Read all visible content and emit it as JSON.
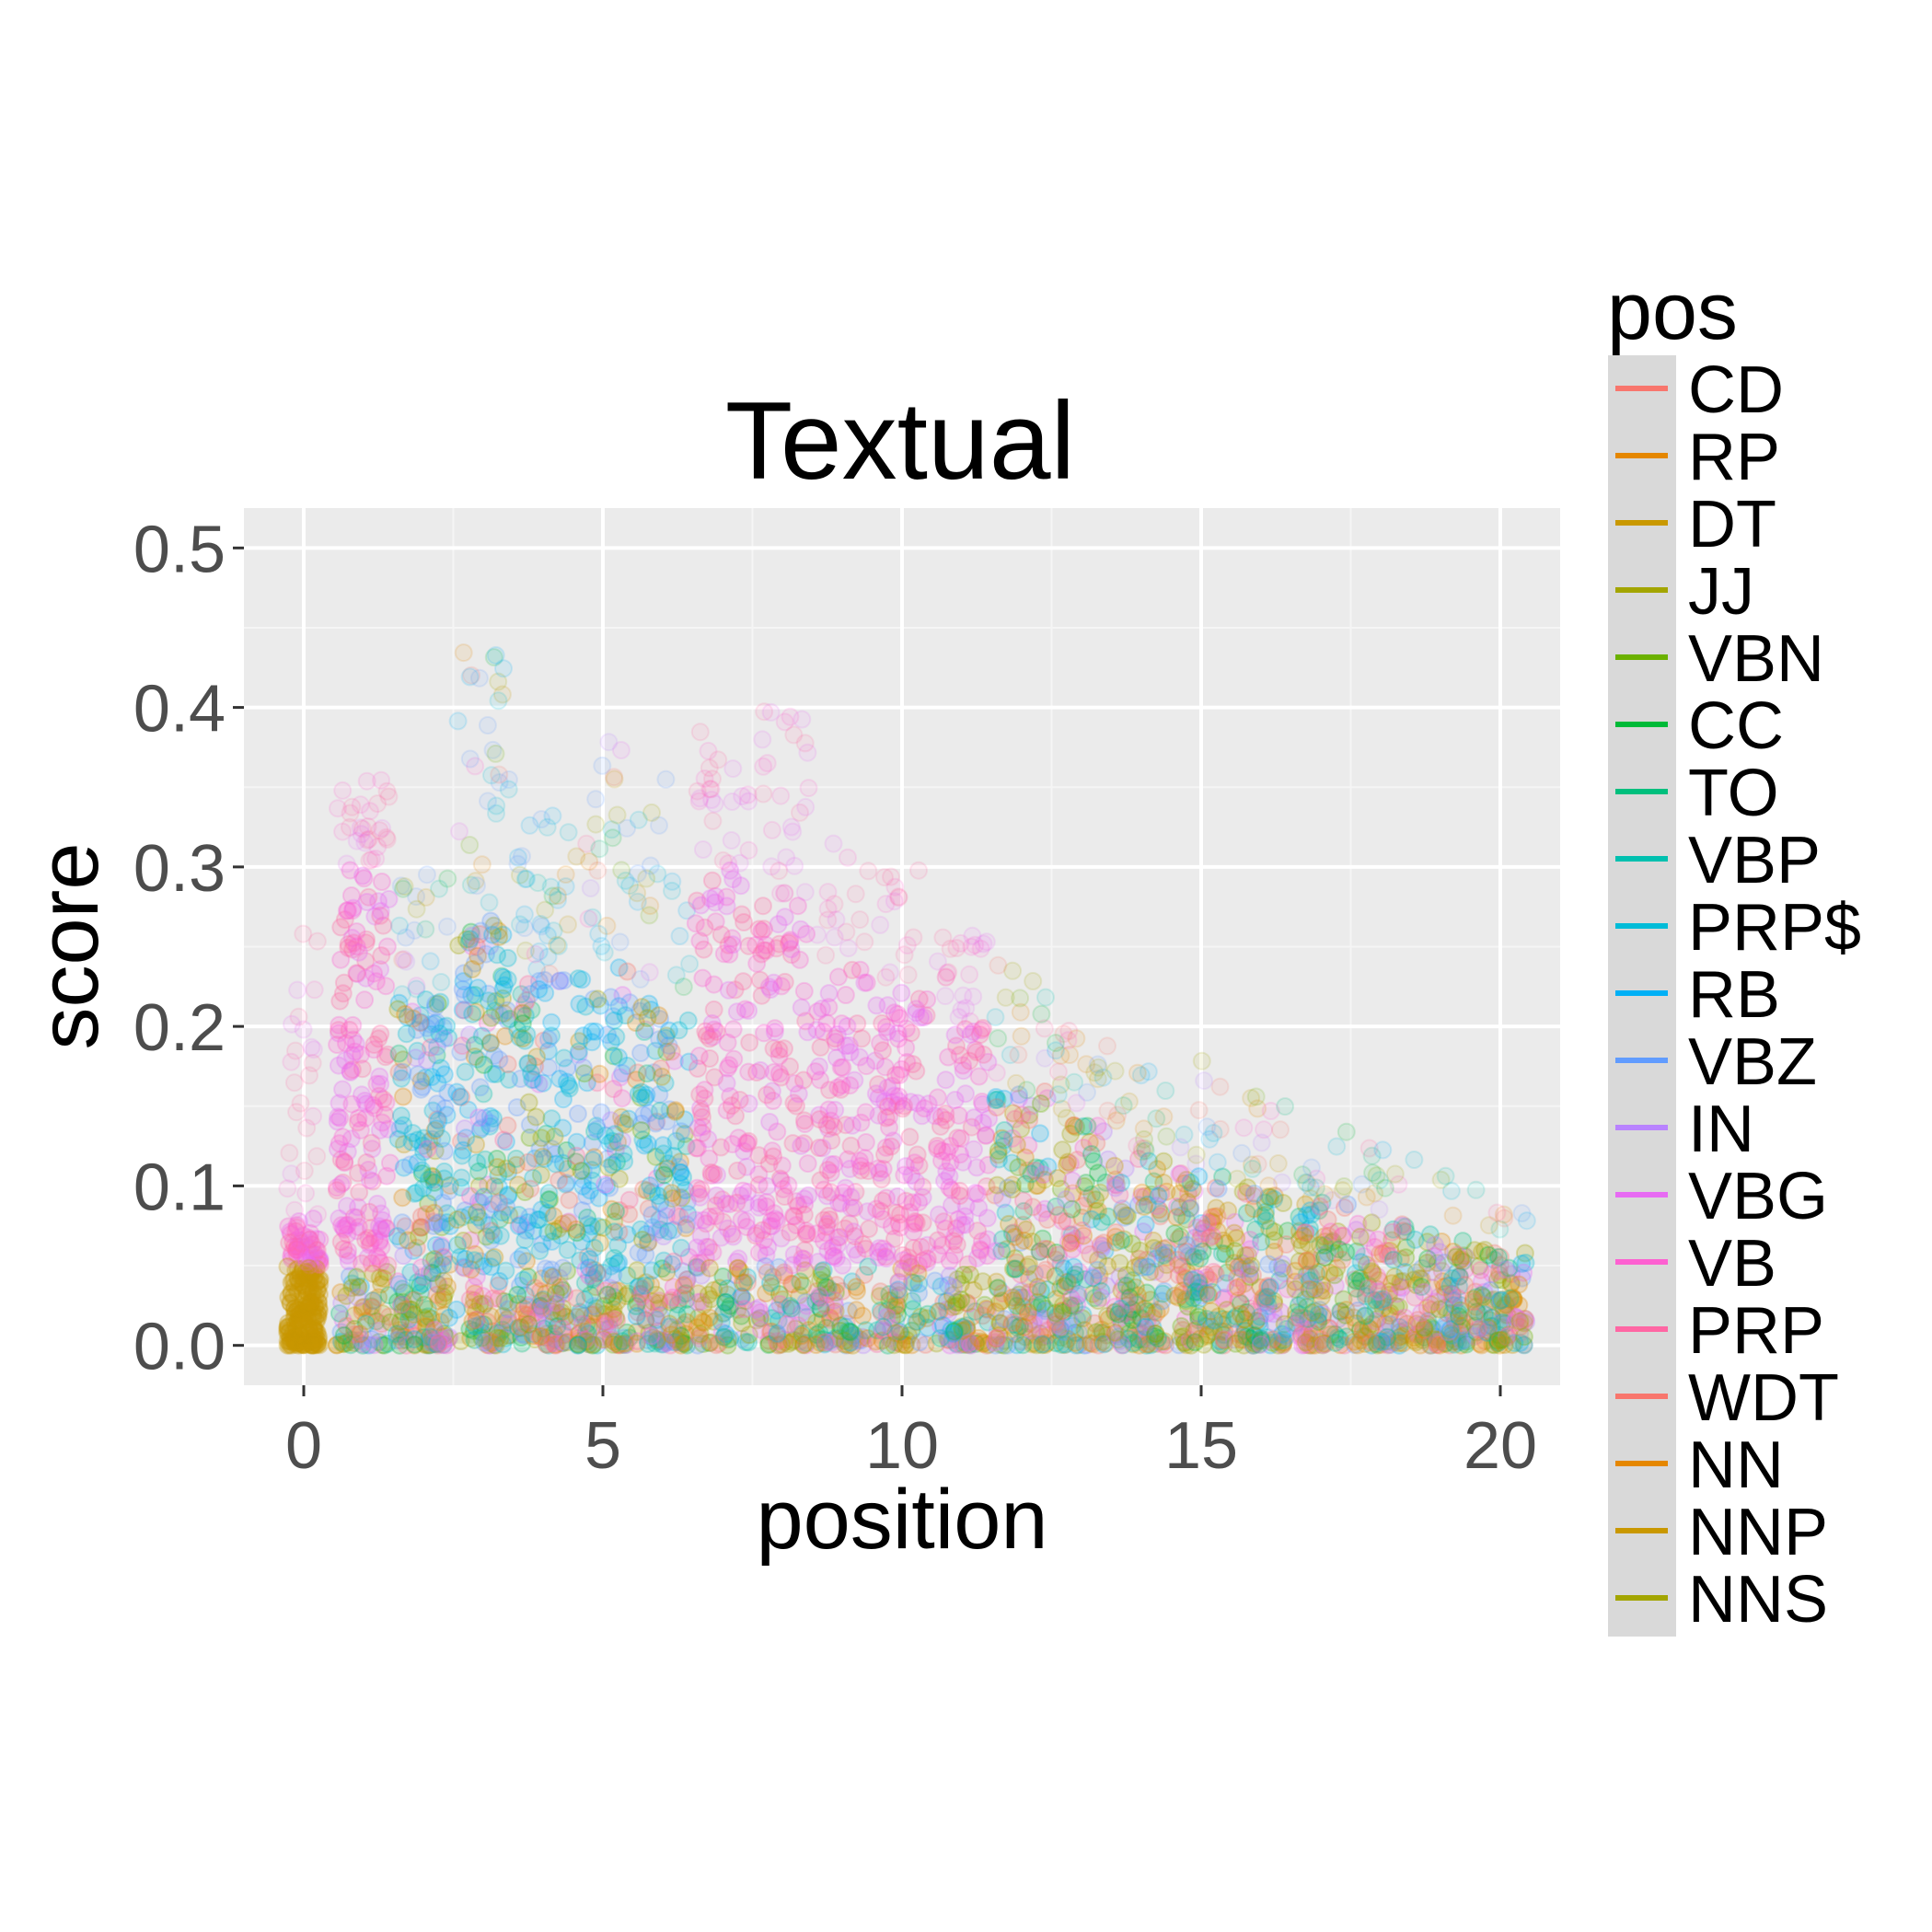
{
  "chart_data": {
    "type": "scatter",
    "title": "Textual",
    "xlabel": "position",
    "ylabel": "score",
    "xlim": [
      -1,
      21
    ],
    "ylim": [
      -0.025,
      0.525
    ],
    "x_ticks": [
      0,
      5,
      10,
      15,
      20
    ],
    "y_ticks": [
      0.0,
      0.1,
      0.2,
      0.3,
      0.4,
      0.5
    ],
    "x_tick_labels": [
      "0",
      "5",
      "10",
      "15",
      "20"
    ],
    "y_tick_labels": [
      "0.0",
      "0.1",
      "0.2",
      "0.3",
      "0.4",
      "0.5"
    ],
    "grid": true,
    "background": "#ebebeb",
    "legend": {
      "title": "pos",
      "placement": "right",
      "entries": [
        {
          "name": "CD",
          "color": "#F8766D"
        },
        {
          "name": "RP",
          "color": "#E58700"
        },
        {
          "name": "DT",
          "color": "#C99800"
        },
        {
          "name": "JJ",
          "color": "#A3A500"
        },
        {
          "name": "VBN",
          "color": "#6BB100"
        },
        {
          "name": "CC",
          "color": "#00BA38"
        },
        {
          "name": "TO",
          "color": "#00BF7D"
        },
        {
          "name": "VBP",
          "color": "#00C0AF"
        },
        {
          "name": "PRP$",
          "color": "#00BCD8"
        },
        {
          "name": "RB",
          "color": "#00B0F6"
        },
        {
          "name": "VBZ",
          "color": "#619CFF"
        },
        {
          "name": "IN",
          "color": "#B983FF"
        },
        {
          "name": "VBG",
          "color": "#E76BF3"
        },
        {
          "name": "VB",
          "color": "#FD61D1"
        },
        {
          "name": "PRP",
          "color": "#FF67A4"
        },
        {
          "name": "WDT",
          "color": "#F8766D"
        },
        {
          "name": "NN",
          "color": "#E58700"
        },
        {
          "name": "NNP",
          "color": "#C99800"
        },
        {
          "name": "NNS",
          "color": "#A3A500"
        }
      ]
    },
    "columns": [
      {
        "x": 0,
        "bulk_max": 0.08,
        "max": 0.26
      },
      {
        "x": 1,
        "bulk_max": 0.3,
        "max": 0.36
      },
      {
        "x": 2,
        "bulk_max": 0.22,
        "max": 0.3
      },
      {
        "x": 3,
        "bulk_max": 0.27,
        "max": 0.44
      },
      {
        "x": 4,
        "bulk_max": 0.23,
        "max": 0.34
      },
      {
        "x": 5,
        "bulk_max": 0.24,
        "max": 0.38
      },
      {
        "x": 6,
        "bulk_max": 0.22,
        "max": 0.36
      },
      {
        "x": 7,
        "bulk_max": 0.3,
        "max": 0.39
      },
      {
        "x": 8,
        "bulk_max": 0.28,
        "max": 0.4
      },
      {
        "x": 9,
        "bulk_max": 0.24,
        "max": 0.32
      },
      {
        "x": 10,
        "bulk_max": 0.23,
        "max": 0.3
      },
      {
        "x": 11,
        "bulk_max": 0.2,
        "max": 0.26
      },
      {
        "x": 12,
        "bulk_max": 0.16,
        "max": 0.24
      },
      {
        "x": 13,
        "bulk_max": 0.14,
        "max": 0.2
      },
      {
        "x": 14,
        "bulk_max": 0.12,
        "max": 0.18
      },
      {
        "x": 15,
        "bulk_max": 0.11,
        "max": 0.19
      },
      {
        "x": 16,
        "bulk_max": 0.1,
        "max": 0.16
      },
      {
        "x": 17,
        "bulk_max": 0.09,
        "max": 0.14
      },
      {
        "x": 18,
        "bulk_max": 0.08,
        "max": 0.13
      },
      {
        "x": 19,
        "bulk_max": 0.07,
        "max": 0.12
      },
      {
        "x": 20,
        "bulk_max": 0.06,
        "max": 0.1
      }
    ]
  }
}
